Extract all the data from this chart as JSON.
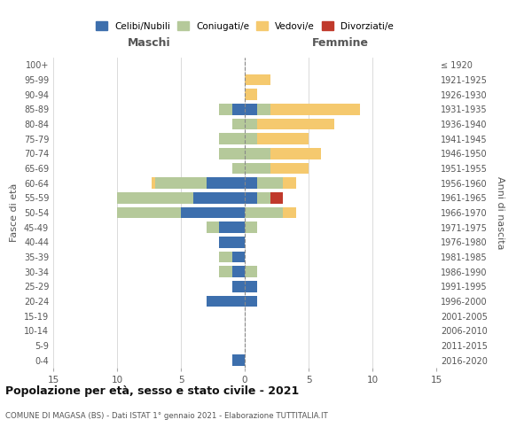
{
  "age_groups_bottom_to_top": [
    "0-4",
    "5-9",
    "10-14",
    "15-19",
    "20-24",
    "25-29",
    "30-34",
    "35-39",
    "40-44",
    "45-49",
    "50-54",
    "55-59",
    "60-64",
    "65-69",
    "70-74",
    "75-79",
    "80-84",
    "85-89",
    "90-94",
    "95-99",
    "100+"
  ],
  "birth_years_bottom_to_top": [
    "2016-2020",
    "2011-2015",
    "2006-2010",
    "2001-2005",
    "1996-2000",
    "1991-1995",
    "1986-1990",
    "1981-1985",
    "1976-1980",
    "1971-1975",
    "1966-1970",
    "1961-1965",
    "1956-1960",
    "1951-1955",
    "1946-1950",
    "1941-1945",
    "1936-1940",
    "1931-1935",
    "1926-1930",
    "1921-1925",
    "≤ 1920"
  ],
  "colors": {
    "celibe": "#3d6fad",
    "coniugato": "#b5c99a",
    "vedovo": "#f5c96e",
    "divorziato": "#c0392b"
  },
  "males": {
    "celibe": [
      1,
      0,
      0,
      0,
      3,
      1,
      1,
      1,
      2,
      2,
      5,
      4,
      3,
      0,
      0,
      0,
      0,
      1,
      0,
      0,
      0
    ],
    "coniugato": [
      0,
      0,
      0,
      0,
      0,
      0,
      1,
      1,
      0,
      1,
      5,
      6,
      4,
      1,
      2,
      2,
      1,
      1,
      0,
      0,
      0
    ],
    "vedovo": [
      0,
      0,
      0,
      0,
      0,
      0,
      0,
      0,
      0,
      0,
      0,
      0,
      0.3,
      0,
      0,
      0,
      0,
      0,
      0,
      0,
      0
    ],
    "divorziato": [
      0,
      0,
      0,
      0,
      0,
      0,
      0,
      0,
      0,
      0,
      0,
      0,
      0,
      0,
      0,
      0,
      0,
      0,
      0,
      0,
      0
    ]
  },
  "females": {
    "nubile": [
      0,
      0,
      0,
      0,
      1,
      1,
      0,
      0,
      0,
      0,
      0,
      1,
      1,
      0,
      0,
      0,
      0,
      1,
      0,
      0,
      0
    ],
    "coniugata": [
      0,
      0,
      0,
      0,
      0,
      0,
      1,
      0,
      0,
      1,
      3,
      1,
      2,
      2,
      2,
      1,
      1,
      1,
      0,
      0,
      0
    ],
    "vedova": [
      0,
      0,
      0,
      0,
      0,
      0,
      0,
      0,
      0,
      0,
      1,
      0,
      1,
      3,
      4,
      4,
      6,
      7,
      1,
      2,
      0
    ],
    "divorziata": [
      0,
      0,
      0,
      0,
      0,
      0,
      0,
      0,
      0,
      0,
      0,
      1,
      0,
      0,
      0,
      0,
      0,
      0,
      0,
      0,
      0
    ]
  },
  "xlim": 15,
  "title": "Popolazione per età, sesso e stato civile - 2021",
  "subtitle": "COMUNE DI MAGASA (BS) - Dati ISTAT 1° gennaio 2021 - Elaborazione TUTTITALIA.IT",
  "xlabel_left": "Maschi",
  "xlabel_right": "Femmine",
  "ylabel_left": "Fasce di età",
  "ylabel_right": "Anni di nascita",
  "legend_labels": [
    "Celibi/Nubili",
    "Coniugati/e",
    "Vedovi/e",
    "Divorziati/e"
  ],
  "bg_color": "#ffffff",
  "grid_color": "#cccccc"
}
